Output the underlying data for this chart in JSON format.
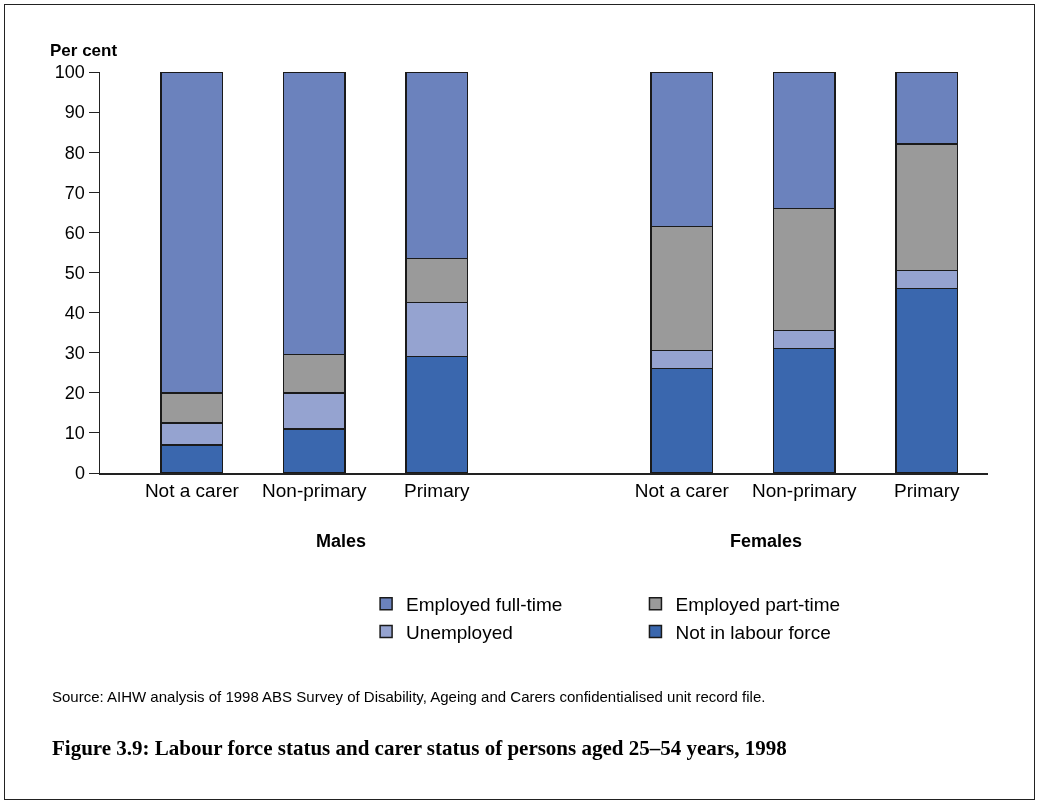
{
  "chart_data": {
    "type": "bar",
    "stacked": true,
    "title": "Figure 3.9: Labour force status and carer status of persons aged 25–54 years, 1998",
    "ylabel": "Per cent",
    "categories": [
      "Not a carer",
      "Non-primary",
      "Primary",
      null,
      "Not a carer",
      "Non-primary",
      "Primary"
    ],
    "series": [
      {
        "name": "Not in labour force",
        "color": "#3a67ae",
        "values": [
          7,
          11,
          29,
          null,
          26,
          31,
          46
        ]
      },
      {
        "name": "Unemployed",
        "color": "#95a3d0",
        "values": [
          5.5,
          9,
          13.5,
          null,
          4.5,
          4.5,
          4.5
        ]
      },
      {
        "name": "Employed part-time",
        "color": "#9a9a9a",
        "values": [
          7.5,
          9.5,
          11,
          null,
          31,
          30.5,
          31.5
        ]
      },
      {
        "name": "Employed full-time",
        "color": "#6b82bd",
        "values": [
          80,
          70.5,
          46.5,
          null,
          38.5,
          34,
          18
        ]
      }
    ],
    "ylim": [
      0,
      100
    ],
    "yticks": [
      0,
      10,
      20,
      30,
      40,
      50,
      60,
      70,
      80,
      90,
      100
    ],
    "grid": false,
    "legend": "bottom",
    "annotations": [
      "Males",
      "Females",
      "Source: AIHW analysis of 1998 ABS Survey of Disability, Ageing and Carers confidentialised unit record file."
    ]
  }
}
